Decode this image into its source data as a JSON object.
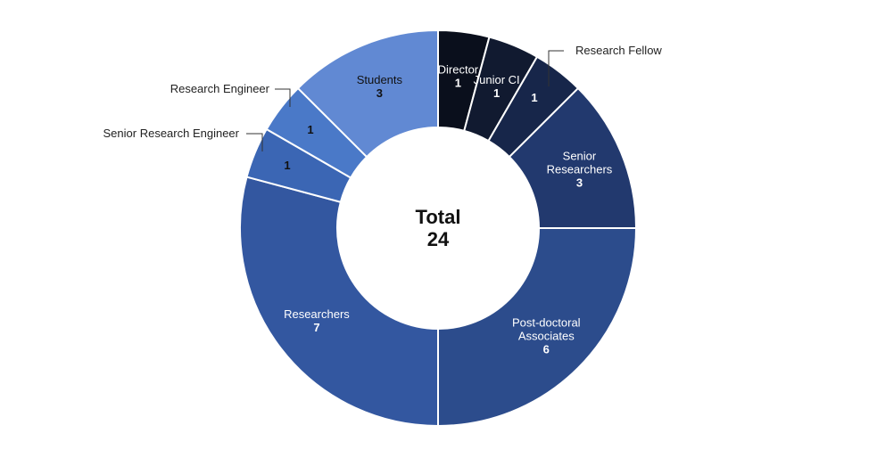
{
  "chart_data": {
    "type": "pie",
    "variant": "donut",
    "title": "",
    "center_title": "Total",
    "center_value": "24",
    "slices": [
      {
        "key": "director",
        "label_lines": [
          "Director"
        ],
        "value": 1,
        "value_text": "1",
        "color": "#0a0f1c",
        "text_color": "#ffffff",
        "label_style": "inside"
      },
      {
        "key": "junior-ci",
        "label_lines": [
          "Junior CI"
        ],
        "value": 1,
        "value_text": "1",
        "color": "#111a30",
        "text_color": "#ffffff",
        "label_style": "inside"
      },
      {
        "key": "research-fellow",
        "label_lines": [
          "Research Fellow"
        ],
        "value": 1,
        "value_text": "1",
        "color": "#17264a",
        "text_color": "#ffffff",
        "label_style": "leader"
      },
      {
        "key": "senior-researchers",
        "label_lines": [
          "Senior",
          "Researchers"
        ],
        "value": 3,
        "value_text": "3",
        "color": "#22396e",
        "text_color": "#ffffff",
        "label_style": "inside"
      },
      {
        "key": "post-doctoral-associates",
        "label_lines": [
          "Post-doctoral",
          "Associates"
        ],
        "value": 6,
        "value_text": "6",
        "color": "#2c4c8c",
        "text_color": "#ffffff",
        "label_style": "inside"
      },
      {
        "key": "researchers",
        "label_lines": [
          "Researchers"
        ],
        "value": 7,
        "value_text": "7",
        "color": "#3357a0",
        "text_color": "#ffffff",
        "label_style": "inside"
      },
      {
        "key": "senior-research-engineer",
        "label_lines": [
          "Senior Research Engineer"
        ],
        "value": 1,
        "value_text": "1",
        "color": "#3b66b4",
        "text_color": "#111111",
        "label_style": "leader"
      },
      {
        "key": "research-engineer",
        "label_lines": [
          "Research Engineer"
        ],
        "value": 1,
        "value_text": "1",
        "color": "#4a79c8",
        "text_color": "#111111",
        "label_style": "leader"
      },
      {
        "key": "students",
        "label_lines": [
          "Students"
        ],
        "value": 3,
        "value_text": "3",
        "color": "#6189d3",
        "text_color": "#111111",
        "label_style": "inside"
      }
    ]
  }
}
